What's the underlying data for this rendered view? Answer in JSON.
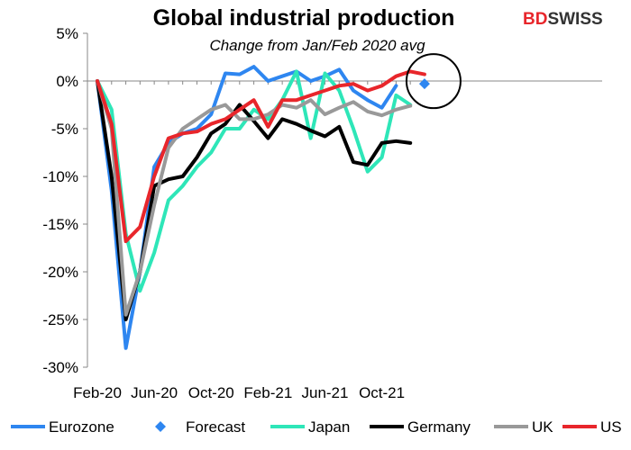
{
  "logo": {
    "text_bd": "BD",
    "text_swiss": "SWISS",
    "red": "#e8262b",
    "dark": "#333333"
  },
  "colors": {
    "Eurozone": "#2e86f0",
    "Forecast": "#2e86f0",
    "Japan": "#2ee6b8",
    "Germany": "#000000",
    "UK": "#999999",
    "US": "#e8262b"
  },
  "chart_data": {
    "type": "line",
    "title": "Global industrial production",
    "subtitle": "Change from Jan/Feb 2020 avg",
    "xlabel": "",
    "ylabel": "",
    "ylim": [
      -30,
      5
    ],
    "y_ticks": [
      5,
      0,
      -5,
      -10,
      -15,
      -20,
      -25,
      -30
    ],
    "y_tick_labels": [
      "5%",
      "0%",
      "-5%",
      "-10%",
      "-15%",
      "-20%",
      "-25%",
      "-30%"
    ],
    "x_start": "Feb-20",
    "x_tick_labels": [
      "Feb-20",
      "Jun-20",
      "Oct-20",
      "Feb-21",
      "Jun-21",
      "Oct-21"
    ],
    "x": [
      "Feb-20",
      "Mar-20",
      "Apr-20",
      "May-20",
      "Jun-20",
      "Jul-20",
      "Aug-20",
      "Sep-20",
      "Oct-20",
      "Nov-20",
      "Dec-20",
      "Jan-21",
      "Feb-21",
      "Mar-21",
      "Apr-21",
      "May-21",
      "Jun-21",
      "Jul-21",
      "Aug-21",
      "Sep-21",
      "Oct-21",
      "Nov-21",
      "Dec-21",
      "Jan-22"
    ],
    "grid": false,
    "legend_position": "bottom",
    "series": [
      {
        "name": "Eurozone",
        "values": [
          0,
          -11.5,
          -28,
          -20,
          -9,
          -6.5,
          -5.5,
          -5,
          -3.5,
          0.8,
          0.7,
          1.5,
          0,
          0.5,
          1,
          0,
          0.5,
          1.2,
          -1,
          -2,
          -2.8,
          -0.5,
          null,
          null
        ]
      },
      {
        "name": "Japan",
        "values": [
          0,
          -3,
          -16,
          -22,
          -18,
          -12.5,
          -11,
          -9,
          -7.5,
          -5,
          -5,
          -3,
          -4,
          -2,
          1,
          -6,
          0.8,
          -1,
          -5,
          -9.5,
          -8,
          -1.5,
          -2.5,
          null
        ]
      },
      {
        "name": "Germany",
        "values": [
          0,
          -10,
          -25,
          -20,
          -11,
          -10.3,
          -10,
          -8,
          -5.5,
          -4.5,
          -2.5,
          -4.2,
          -6,
          -4,
          -4.5,
          -5.2,
          -5.8,
          -4.8,
          -8.5,
          -8.8,
          -6.5,
          -6.3,
          -6.5,
          null
        ]
      },
      {
        "name": "UK",
        "values": [
          0,
          -5,
          -24.5,
          -20,
          -13,
          -7,
          -5,
          -4,
          -3,
          -2.5,
          -4,
          -4,
          -3.5,
          -2.5,
          -2.8,
          -2,
          -3.5,
          -2.8,
          -2.2,
          -3.2,
          -3.6,
          -3,
          -2.6,
          null
        ]
      },
      {
        "name": "US",
        "values": [
          0,
          -4.5,
          -16.8,
          -15.3,
          -10,
          -6,
          -5.5,
          -5.3,
          -4.5,
          -4,
          -3,
          -2,
          -4.8,
          -2,
          -2,
          -1.5,
          -1,
          -0.5,
          -0.3,
          -1,
          -0.5,
          0.5,
          1,
          0.7
        ]
      }
    ],
    "forecast": {
      "name": "Forecast",
      "x": "Jan-22",
      "value": -0.3
    }
  }
}
